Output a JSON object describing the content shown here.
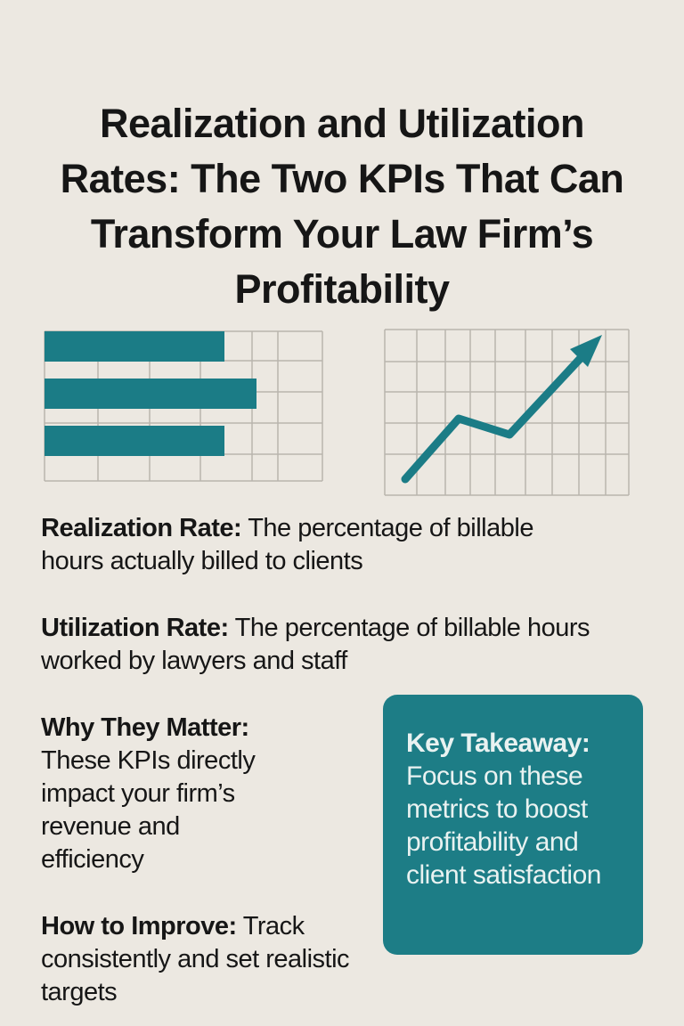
{
  "header": {
    "title": "Realization and Utilization Rates: The Two KPIs That Can Transform Your Law Firm’s Profitability"
  },
  "sections": [
    {
      "term": "Realization Rate:",
      "text": "The percentage of billable hours actually billed to clients"
    },
    {
      "term": "Utilization Rate:",
      "text": "The percentage of billable hours worked by lawyers and staff"
    },
    {
      "term": "Why They Matter:",
      "text": "These KPIs directly impact your firm’s revenue and efficiency"
    },
    {
      "term": "How to Improve:",
      "text": "Track consistently and set realistic targets"
    }
  ],
  "takeaway": {
    "term": "Key Takeaway:",
    "text": "Focus on these metrics to boost profitability and client satisfaction"
  }
}
